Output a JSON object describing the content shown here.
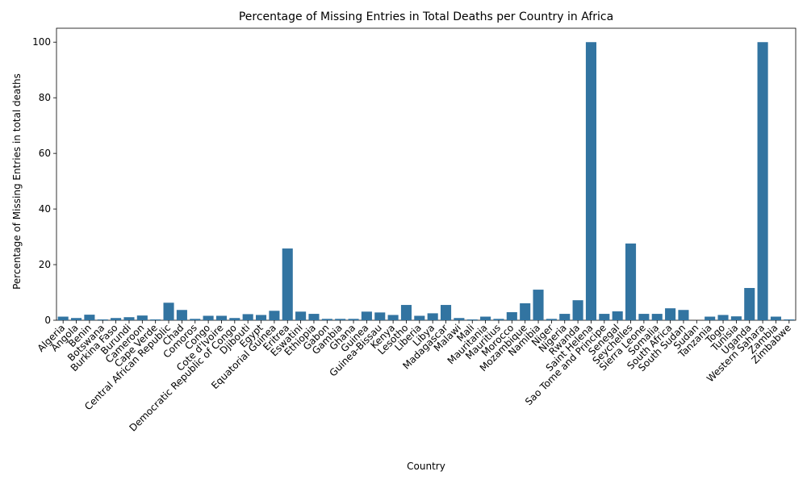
{
  "chart_data": {
    "type": "bar",
    "title": "Percentage of Missing Entries in Total Deaths per Country in Africa",
    "xlabel": "Country",
    "ylabel": "Percentage of Missing Entries in total deaths",
    "ylim": [
      0,
      105
    ],
    "yticks": [
      0,
      20,
      40,
      60,
      80,
      100
    ],
    "grid": false,
    "bar_color": "#3274a1",
    "categories": [
      "Algeria",
      "Angola",
      "Benin",
      "Botswana",
      "Burkina Faso",
      "Burundi",
      "Cameroon",
      "Cape Verde",
      "Central African Republic",
      "Chad",
      "Comoros",
      "Congo",
      "Cote d'Ivoire",
      "Democratic Republic of Congo",
      "Djibouti",
      "Egypt",
      "Equatorial Guinea",
      "Eritrea",
      "Eswatini",
      "Ethiopia",
      "Gabon",
      "Gambia",
      "Ghana",
      "Guinea",
      "Guinea-Bissau",
      "Kenya",
      "Lesotho",
      "Liberia",
      "Libya",
      "Madagascar",
      "Malawi",
      "Mali",
      "Mauritania",
      "Mauritius",
      "Morocco",
      "Mozambique",
      "Namibia",
      "Niger",
      "Nigeria",
      "Rwanda",
      "Saint Helena",
      "Sao Tome and Principe",
      "Senegal",
      "Seychelles",
      "Sierra Leone",
      "Somalia",
      "South Africa",
      "South Sudan",
      "Sudan",
      "Tanzania",
      "Togo",
      "Tunisia",
      "Uganda",
      "Western Sahara",
      "Zambia",
      "Zimbabwe"
    ],
    "values": [
      1.3,
      0.8,
      2.0,
      0.3,
      0.8,
      1.1,
      1.7,
      0.3,
      6.3,
      3.7,
      0.5,
      1.6,
      1.6,
      0.8,
      2.2,
      1.9,
      3.4,
      25.8,
      3.1,
      2.3,
      0.5,
      0.5,
      0.5,
      3.1,
      2.8,
      1.9,
      5.5,
      1.6,
      2.5,
      5.5,
      0.8,
      0.3,
      1.3,
      0.5,
      2.9,
      6.1,
      11.0,
      0.5,
      2.3,
      7.2,
      100.0,
      2.3,
      3.2,
      27.6,
      2.3,
      2.3,
      4.3,
      3.7,
      0.0,
      1.3,
      1.9,
      1.4,
      11.6,
      100.0,
      1.3,
      0.3
    ]
  }
}
